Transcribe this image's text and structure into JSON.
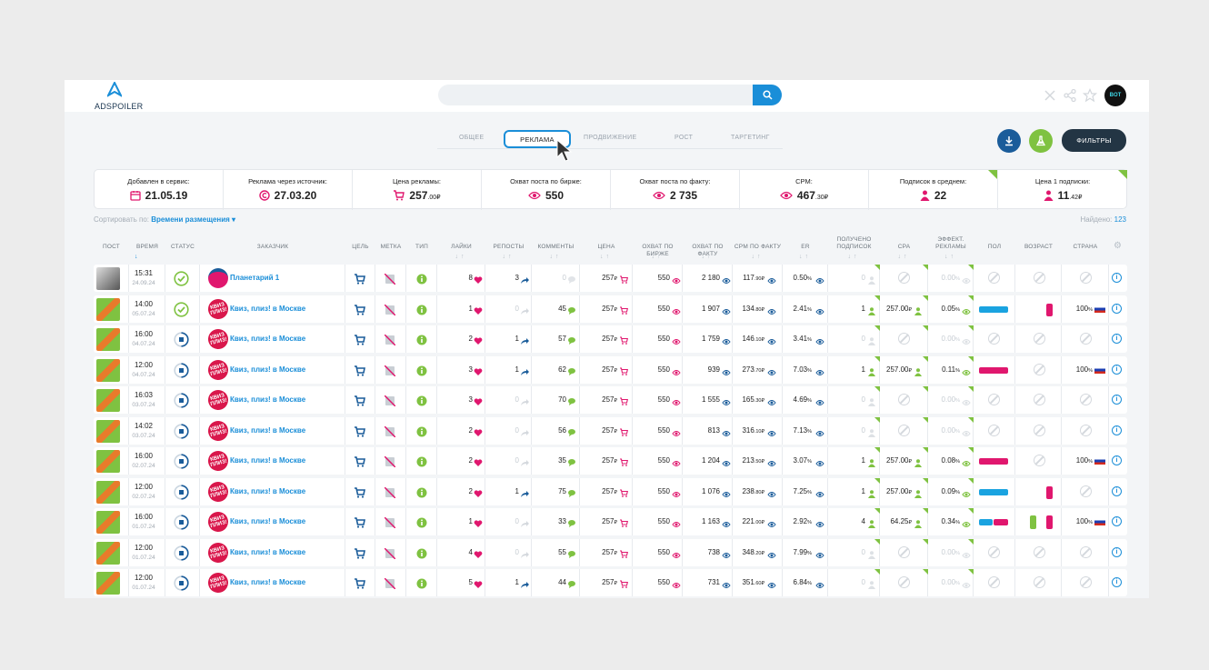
{
  "app": {
    "logo_text_bold": "AD",
    "logo_text": "SPOILER",
    "avatar_text": "BOT"
  },
  "search": {
    "placeholder": "",
    "value": ""
  },
  "tabs": [
    {
      "label": "ОБЩЕЕ",
      "active": false
    },
    {
      "label": "РЕКЛАМА",
      "active": true
    },
    {
      "label": "ПРОДВИЖЕНИЕ",
      "active": false
    },
    {
      "label": "РОСТ",
      "active": false
    },
    {
      "label": "ТАРГЕТИНГ",
      "active": false
    }
  ],
  "toolbar": {
    "filters_label": "ФИЛЬТРЫ"
  },
  "stats": [
    {
      "label": "Добавлен в сервис:",
      "value": "21.05.19",
      "suffix": "",
      "icon": "calendar-icon"
    },
    {
      "label": "Реклама через источник:",
      "value": "27.03.20",
      "suffix": "",
      "icon": "copyright-icon"
    },
    {
      "label": "Цена рекламы:",
      "value": "257",
      "suffix": ".00₽",
      "icon": "cart-icon"
    },
    {
      "label": "Охват поста по бирже:",
      "value": "550",
      "suffix": "",
      "icon": "eye-icon"
    },
    {
      "label": "Охват поста по факту:",
      "value": "2 735",
      "suffix": "",
      "icon": "eye-icon"
    },
    {
      "label": "CPM:",
      "value": "467",
      "suffix": ".30₽",
      "icon": "eye-icon"
    },
    {
      "label": "Подписок в среднем:",
      "value": "22",
      "suffix": "",
      "icon": "user-icon"
    },
    {
      "label": "Цена 1 подписки:",
      "value": "11",
      "suffix": ".42₽",
      "icon": "user-icon"
    }
  ],
  "sort": {
    "label": "Сортировать по:",
    "value": "Времени размещения"
  },
  "found": {
    "label": "Найдено:",
    "value": "123"
  },
  "columns": [
    "ПОСТ",
    "ВРЕМЯ",
    "СТАТУС",
    "ЗАКАЗЧИК",
    "ЦЕЛЬ",
    "МЕТКА",
    "ТИП",
    "ЛАЙКИ",
    "РЕПОСТЫ",
    "КОММЕНТЫ",
    "ЦЕНА",
    "ОХВАТ ПО БИРЖЕ",
    "ОХВАТ ПО ФАКТУ",
    "CPM ПО ФАКТУ",
    "ER",
    "ПОЛУЧЕНО ПОДПИСОК",
    "CPA",
    "ЭФФЕКТ. РЕКЛАМЫ",
    "ПОЛ",
    "ВОЗРАСТ",
    "СТРАНА"
  ],
  "rows": [
    {
      "time": "15:31",
      "date": "24.09.24",
      "status": "done",
      "customer": "Планетарий 1",
      "avatar": "",
      "likes": "8",
      "reposts": "3",
      "comments": "0",
      "price": "257",
      "reach_ex": "550",
      "reach_fact": "2 180",
      "cpm": "117",
      "cpm_dec": ".90",
      "er": "0.50",
      "subs": "0",
      "cpa": "",
      "eff": "0.00",
      "gender": null,
      "age": false,
      "country": ""
    },
    {
      "time": "14:00",
      "date": "05.07.24",
      "status": "done",
      "customer": "Квиз, плиз! в Москве",
      "avatar": "КВИЗ ПЛИЗ!",
      "likes": "1",
      "reposts": "0",
      "comments": "45",
      "price": "257",
      "reach_ex": "550",
      "reach_fact": "1 907",
      "cpm": "134",
      "cpm_dec": ".80",
      "er": "2.41",
      "subs": "1",
      "cpa": "257.00",
      "eff": "0.05",
      "gender": "male",
      "age": true,
      "country": "100"
    },
    {
      "time": "16:00",
      "date": "04.07.24",
      "status": "progress",
      "customer": "Квиз, плиз! в Москве",
      "avatar": "КВИЗ ПЛИЗ!",
      "likes": "2",
      "reposts": "1",
      "comments": "57",
      "price": "257",
      "reach_ex": "550",
      "reach_fact": "1 759",
      "cpm": "146",
      "cpm_dec": ".10",
      "er": "3.41",
      "subs": "0",
      "cpa": "",
      "eff": "0.00",
      "gender": null,
      "age": false,
      "country": ""
    },
    {
      "time": "12:00",
      "date": "04.07.24",
      "status": "progress",
      "customer": "Квиз, плиз! в Москве",
      "avatar": "КВИЗ ПЛИЗ!",
      "likes": "3",
      "reposts": "1",
      "comments": "62",
      "price": "257",
      "reach_ex": "550",
      "reach_fact": "939",
      "cpm": "273",
      "cpm_dec": ".70",
      "er": "7.03",
      "subs": "1",
      "cpa": "257.00",
      "eff": "0.11",
      "gender": "female",
      "age": false,
      "country": "100"
    },
    {
      "time": "16:03",
      "date": "03.07.24",
      "status": "progress",
      "customer": "Квиз, плиз! в Москве",
      "avatar": "КВИЗ ПЛИЗ!",
      "likes": "3",
      "reposts": "0",
      "comments": "70",
      "price": "257",
      "reach_ex": "550",
      "reach_fact": "1 555",
      "cpm": "165",
      "cpm_dec": ".30",
      "er": "4.69",
      "subs": "0",
      "cpa": "",
      "eff": "0.00",
      "gender": null,
      "age": false,
      "country": ""
    },
    {
      "time": "14:02",
      "date": "03.07.24",
      "status": "progress",
      "customer": "Квиз, плиз! в Москве",
      "avatar": "КВИЗ ПЛИЗ!",
      "likes": "2",
      "reposts": "0",
      "comments": "56",
      "price": "257",
      "reach_ex": "550",
      "reach_fact": "813",
      "cpm": "316",
      "cpm_dec": ".10",
      "er": "7.13",
      "subs": "0",
      "cpa": "",
      "eff": "0.00",
      "gender": null,
      "age": false,
      "country": ""
    },
    {
      "time": "16:00",
      "date": "02.07.24",
      "status": "progress",
      "customer": "Квиз, плиз! в Москве",
      "avatar": "КВИЗ ПЛИЗ!",
      "likes": "2",
      "reposts": "0",
      "comments": "35",
      "price": "257",
      "reach_ex": "550",
      "reach_fact": "1 204",
      "cpm": "213",
      "cpm_dec": ".50",
      "er": "3.07",
      "subs": "1",
      "cpa": "257.00",
      "eff": "0.08",
      "gender": "female",
      "age": false,
      "country": "100"
    },
    {
      "time": "12:00",
      "date": "02.07.24",
      "status": "progress",
      "customer": "Квиз, плиз! в Москве",
      "avatar": "КВИЗ ПЛИЗ!",
      "likes": "2",
      "reposts": "1",
      "comments": "75",
      "price": "257",
      "reach_ex": "550",
      "reach_fact": "1 076",
      "cpm": "238",
      "cpm_dec": ".80",
      "er": "7.25",
      "subs": "1",
      "cpa": "257.00",
      "eff": "0.09",
      "gender": "male",
      "age": true,
      "country": ""
    },
    {
      "time": "16:00",
      "date": "01.07.24",
      "status": "progress",
      "customer": "Квиз, плиз! в Москве",
      "avatar": "КВИЗ ПЛИЗ!",
      "likes": "1",
      "reposts": "0",
      "comments": "33",
      "price": "257",
      "reach_ex": "550",
      "reach_fact": "1 163",
      "cpm": "221",
      "cpm_dec": ".00",
      "er": "2.92",
      "subs": "4",
      "cpa": "64.25",
      "eff": "0.34",
      "gender": "both",
      "age": "both",
      "country": "100"
    },
    {
      "time": "12:00",
      "date": "01.07.24",
      "status": "progress",
      "customer": "Квиз, плиз! в Москве",
      "avatar": "КВИЗ ПЛИЗ!",
      "likes": "4",
      "reposts": "0",
      "comments": "55",
      "price": "257",
      "reach_ex": "550",
      "reach_fact": "738",
      "cpm": "348",
      "cpm_dec": ".20",
      "er": "7.99",
      "subs": "0",
      "cpa": "",
      "eff": "0.00",
      "gender": null,
      "age": false,
      "country": ""
    },
    {
      "time": "12:00",
      "date": "01.07.24",
      "status": "progress",
      "customer": "Квиз, плиз! в Москве",
      "avatar": "КВИЗ ПЛИЗ!",
      "likes": "5",
      "reposts": "1",
      "comments": "44",
      "price": "257",
      "reach_ex": "550",
      "reach_fact": "731",
      "cpm": "351",
      "cpm_dec": ".60",
      "er": "6.84",
      "subs": "0",
      "cpa": "",
      "eff": "0.00",
      "gender": null,
      "age": false,
      "country": ""
    }
  ],
  "colors": {
    "accent": "#1a8ed8",
    "pink": "#e0176e",
    "green": "#7fc241",
    "dark": "#233544"
  }
}
